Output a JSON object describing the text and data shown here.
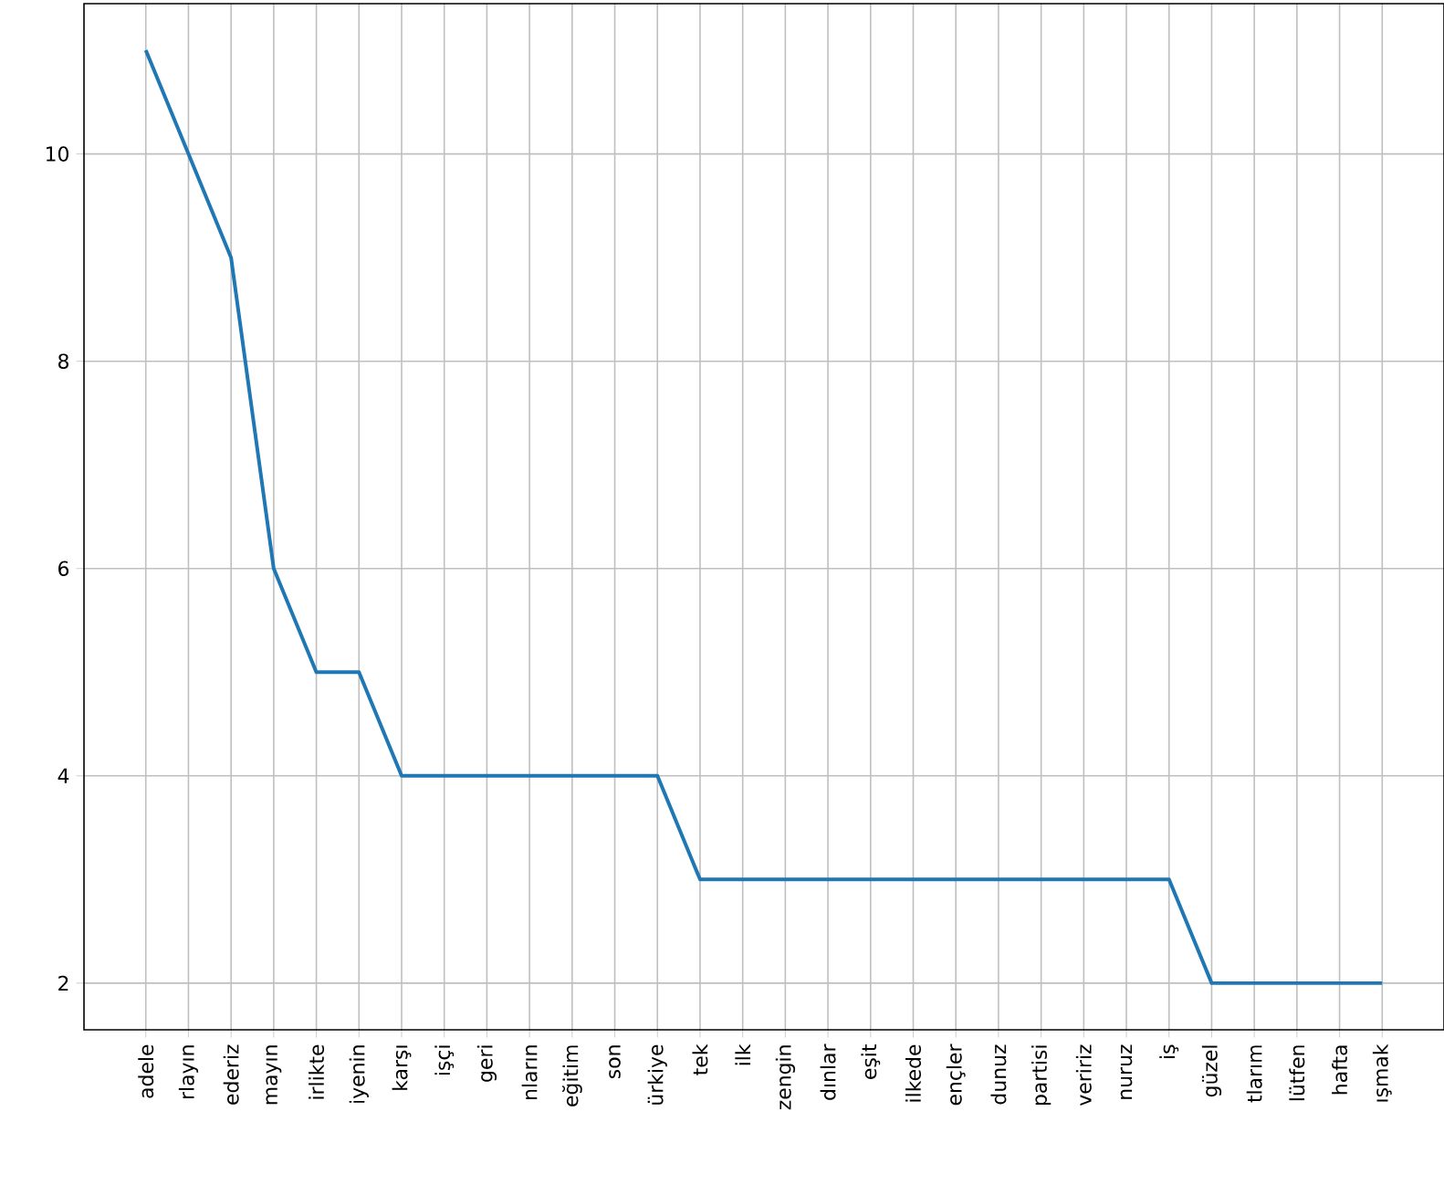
{
  "chart_data": {
    "type": "line",
    "categories": [
      "adele",
      "rlayın",
      "ederiz",
      "mayın",
      "irlikte",
      "iyenin",
      "karşı",
      "işçi",
      "geri",
      "nların",
      "eğitim",
      "son",
      "ürkiye",
      "tek",
      "ilk",
      "zengin",
      "dınlar",
      "eşit",
      "ilkede",
      "ençler",
      "dunuz",
      "partisi",
      "veririz",
      "nuruz",
      "iş",
      "güzel",
      "tlarım",
      "lütfen",
      "hafta",
      "ışmak"
    ],
    "series": [
      {
        "color": "#1f77b4",
        "values": [
          11,
          10,
          9,
          6,
          5,
          5,
          4,
          4,
          4,
          4,
          4,
          4,
          4,
          3,
          3,
          3,
          3,
          3,
          3,
          3,
          3,
          3,
          3,
          3,
          3,
          2,
          2,
          2,
          2,
          2
        ]
      }
    ],
    "ylim": [
      1.55,
      11.45
    ],
    "yticks": [
      2,
      4,
      6,
      8,
      10
    ],
    "grid": true,
    "marker": "none",
    "line_style": "solid"
  }
}
